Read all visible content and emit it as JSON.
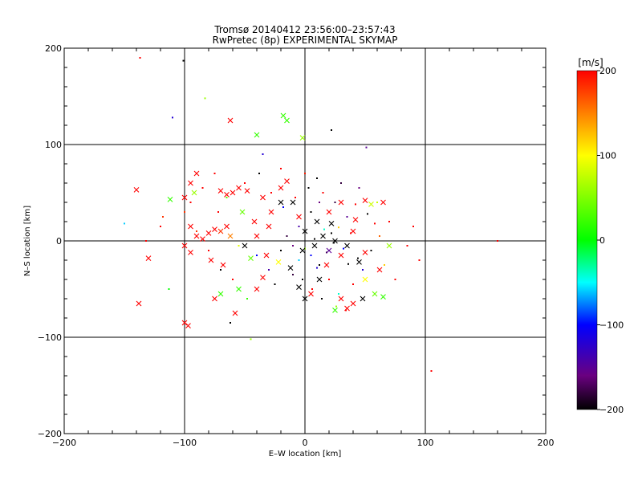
{
  "chart_data": {
    "type": "scatter",
    "title_lines": [
      "Tromsø 20140412 23:56:00–23:57:43",
      "RwPretec (8p) EXPERIMENTAL SKYMAP"
    ],
    "xlabel": "E–W location [km]",
    "ylabel": "N–S location [km]",
    "xlim": [
      -200,
      200
    ],
    "ylim": [
      -200,
      200
    ],
    "x_ticks": [
      -200,
      -100,
      0,
      100,
      200
    ],
    "y_ticks": [
      -200,
      -100,
      0,
      100,
      200
    ],
    "x_tick_labels": [
      "−200",
      "−100",
      "0",
      "100",
      "200"
    ],
    "y_tick_labels": [
      "−200",
      "−100",
      "0",
      "100",
      "200"
    ],
    "grid_lines": [
      -100,
      0,
      100
    ],
    "grid": true,
    "colorbar": {
      "unit_label": "[m/s]",
      "range": [
        -200,
        200
      ],
      "ticks": [
        200,
        100,
        0,
        -100,
        -200
      ],
      "tick_labels": [
        "200",
        "100",
        "0",
        "−100",
        "−200"
      ],
      "colormap": "rainbow: black(-200) → purple → blue → cyan → green(0) → yellow(100) → orange → red(200)"
    },
    "series": [
      {
        "marker": "dot",
        "points": [
          [
            -137,
            190,
            200
          ],
          [
            -101,
            187,
            -200
          ],
          [
            -110,
            128,
            -120
          ],
          [
            -83,
            148,
            60
          ],
          [
            22,
            115,
            -200
          ],
          [
            51,
            97,
            -150
          ],
          [
            -150,
            18,
            -60
          ],
          [
            160,
            0,
            200
          ],
          [
            105,
            -135,
            200
          ],
          [
            -45,
            -102,
            60
          ],
          [
            -62,
            -85,
            -200
          ],
          [
            -113,
            -50,
            0
          ],
          [
            -132,
            0,
            200
          ],
          [
            -118,
            25,
            180
          ],
          [
            -35,
            90,
            -120
          ],
          [
            -20,
            75,
            200
          ],
          [
            0,
            70,
            190
          ],
          [
            10,
            65,
            -200
          ],
          [
            30,
            60,
            -180
          ],
          [
            45,
            55,
            -160
          ],
          [
            60,
            40,
            80
          ],
          [
            70,
            20,
            200
          ],
          [
            90,
            15,
            200
          ],
          [
            85,
            -5,
            200
          ],
          [
            95,
            -20,
            200
          ],
          [
            -90,
            10,
            180
          ],
          [
            -80,
            -10,
            200
          ],
          [
            -70,
            -30,
            -200
          ],
          [
            -55,
            -5,
            90
          ],
          [
            -40,
            -15,
            -100
          ],
          [
            -30,
            -30,
            -140
          ],
          [
            -25,
            -45,
            -200
          ],
          [
            -10,
            -35,
            -180
          ],
          [
            -5,
            -20,
            -60
          ],
          [
            5,
            -15,
            -100
          ],
          [
            12,
            -25,
            -200
          ],
          [
            20,
            -40,
            200
          ],
          [
            28,
            -55,
            -40
          ],
          [
            40,
            -45,
            200
          ],
          [
            48,
            -30,
            -120
          ],
          [
            55,
            -10,
            -200
          ],
          [
            62,
            5,
            160
          ],
          [
            35,
            25,
            -150
          ],
          [
            25,
            40,
            -180
          ],
          [
            15,
            50,
            200
          ],
          [
            5,
            30,
            -200
          ],
          [
            -5,
            15,
            -140
          ],
          [
            -15,
            5,
            -180
          ],
          [
            -20,
            -10,
            -200
          ],
          [
            -10,
            -5,
            -160
          ],
          [
            0,
            -8,
            60
          ],
          [
            8,
            2,
            -200
          ],
          [
            16,
            12,
            -40
          ],
          [
            24,
            -2,
            -200
          ],
          [
            32,
            -8,
            -100
          ],
          [
            38,
            8,
            200
          ],
          [
            44,
            -18,
            -200
          ],
          [
            18,
            -12,
            -180
          ],
          [
            22,
            8,
            -200
          ],
          [
            28,
            14,
            120
          ],
          [
            36,
            -24,
            -200
          ],
          [
            10,
            -28,
            -120
          ],
          [
            -2,
            -40,
            -200
          ],
          [
            6,
            -50,
            200
          ],
          [
            14,
            -60,
            -200
          ],
          [
            26,
            -68,
            60
          ],
          [
            34,
            -72,
            200
          ],
          [
            -48,
            -60,
            20
          ],
          [
            -60,
            -40,
            200
          ],
          [
            -72,
            30,
            200
          ],
          [
            -65,
            45,
            40
          ],
          [
            -50,
            60,
            200
          ],
          [
            -38,
            70,
            -200
          ],
          [
            -28,
            50,
            200
          ],
          [
            -18,
            35,
            -100
          ],
          [
            -8,
            45,
            200
          ],
          [
            3,
            55,
            -200
          ],
          [
            12,
            40,
            -160
          ],
          [
            42,
            38,
            200
          ],
          [
            52,
            28,
            -200
          ],
          [
            58,
            18,
            200
          ],
          [
            66,
            -25,
            120
          ],
          [
            75,
            -40,
            200
          ],
          [
            -95,
            40,
            200
          ],
          [
            -100,
            30,
            180
          ],
          [
            -85,
            55,
            200
          ],
          [
            -75,
            70,
            200
          ],
          [
            -120,
            15,
            200
          ]
        ]
      },
      {
        "marker": "cross",
        "points": [
          [
            -138,
            -65,
            200
          ],
          [
            -130,
            -18,
            200
          ],
          [
            -97,
            -88,
            200
          ],
          [
            -100,
            -85,
            200
          ],
          [
            -112,
            43,
            20
          ],
          [
            -140,
            53,
            200
          ],
          [
            -62,
            125,
            200
          ],
          [
            -40,
            110,
            20
          ],
          [
            -18,
            130,
            20
          ],
          [
            -15,
            125,
            20
          ],
          [
            -2,
            107,
            60
          ],
          [
            -48,
            52,
            200
          ],
          [
            -60,
            50,
            200
          ],
          [
            -55,
            55,
            200
          ],
          [
            -65,
            48,
            200
          ],
          [
            -70,
            52,
            200
          ],
          [
            -90,
            70,
            200
          ],
          [
            -95,
            60,
            200
          ],
          [
            -92,
            50,
            60
          ],
          [
            -100,
            45,
            200
          ],
          [
            -95,
            15,
            200
          ],
          [
            -90,
            5,
            200
          ],
          [
            -80,
            8,
            200
          ],
          [
            -75,
            12,
            200
          ],
          [
            -70,
            10,
            180
          ],
          [
            -65,
            15,
            200
          ],
          [
            -62,
            5,
            150
          ],
          [
            -85,
            2,
            200
          ],
          [
            -100,
            -5,
            200
          ],
          [
            -95,
            -12,
            200
          ],
          [
            -75,
            -60,
            200
          ],
          [
            -70,
            -55,
            20
          ],
          [
            -58,
            -75,
            200
          ],
          [
            -55,
            -50,
            20
          ],
          [
            -40,
            -50,
            200
          ],
          [
            -35,
            -38,
            200
          ],
          [
            -45,
            -18,
            40
          ],
          [
            -50,
            -5,
            -200
          ],
          [
            -40,
            5,
            200
          ],
          [
            -30,
            15,
            200
          ],
          [
            -28,
            30,
            200
          ],
          [
            -35,
            45,
            200
          ],
          [
            -20,
            55,
            200
          ],
          [
            -15,
            62,
            200
          ],
          [
            -10,
            40,
            -200
          ],
          [
            -5,
            25,
            200
          ],
          [
            0,
            10,
            -200
          ],
          [
            8,
            -5,
            -200
          ],
          [
            15,
            5,
            -200
          ],
          [
            20,
            -10,
            -150
          ],
          [
            25,
            0,
            -200
          ],
          [
            30,
            -15,
            200
          ],
          [
            35,
            -5,
            -200
          ],
          [
            40,
            10,
            200
          ],
          [
            45,
            -22,
            -200
          ],
          [
            50,
            -12,
            200
          ],
          [
            22,
            18,
            -200
          ],
          [
            18,
            -25,
            200
          ],
          [
            12,
            -40,
            -200
          ],
          [
            5,
            -55,
            200
          ],
          [
            0,
            -60,
            -200
          ],
          [
            -5,
            -48,
            -200
          ],
          [
            30,
            -60,
            200
          ],
          [
            35,
            -70,
            200
          ],
          [
            25,
            -72,
            20
          ],
          [
            40,
            -65,
            200
          ],
          [
            48,
            -60,
            -200
          ],
          [
            58,
            -55,
            40
          ],
          [
            65,
            -58,
            20
          ],
          [
            20,
            30,
            200
          ],
          [
            30,
            40,
            200
          ],
          [
            42,
            22,
            200
          ],
          [
            50,
            42,
            200
          ],
          [
            55,
            38,
            80
          ],
          [
            65,
            40,
            200
          ],
          [
            70,
            -5,
            60
          ],
          [
            62,
            -30,
            200
          ],
          [
            50,
            -40,
            100
          ],
          [
            10,
            20,
            -200
          ],
          [
            -2,
            -10,
            -200
          ],
          [
            -12,
            -28,
            -200
          ],
          [
            -22,
            -22,
            100
          ],
          [
            -32,
            -15,
            200
          ],
          [
            -42,
            20,
            200
          ],
          [
            -20,
            40,
            -200
          ],
          [
            -52,
            30,
            40
          ],
          [
            -68,
            -25,
            200
          ],
          [
            -78,
            -20,
            200
          ]
        ]
      }
    ]
  }
}
